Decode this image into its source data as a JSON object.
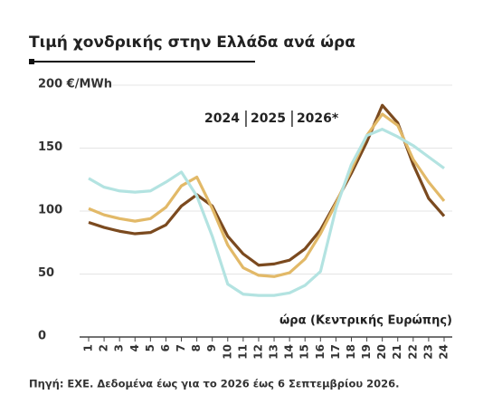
{
  "chart_data": {
    "type": "line",
    "title": "Τιμή χονδρικής στην Ελλάδα ανά ώρα",
    "x_label": "ώρα (Κεντρικής Ευρώπης)",
    "source": "Πηγή: ΕΧΕ. Δεδομένα έως για το 2026 έως 6 Σεπτεμβρίου 2026.",
    "categories": [
      "1",
      "2",
      "3",
      "4",
      "5",
      "6",
      "7",
      "8",
      "9",
      "10",
      "11",
      "12",
      "13",
      "14",
      "15",
      "16",
      "17",
      "18",
      "19",
      "20",
      "21",
      "22",
      "23",
      "24"
    ],
    "series": [
      {
        "name": "2024",
        "color": "#7b4a1f",
        "values": [
          91,
          87,
          84,
          82,
          83,
          89,
          104,
          113,
          104,
          80,
          66,
          57,
          58,
          61,
          70,
          85,
          107,
          130,
          155,
          184,
          170,
          137,
          110,
          96
        ]
      },
      {
        "name": "2025",
        "color": "#e2b968",
        "values": [
          102,
          97,
          94,
          92,
          94,
          103,
          120,
          127,
          102,
          73,
          55,
          49,
          48,
          51,
          62,
          82,
          106,
          133,
          160,
          177,
          168,
          141,
          123,
          108
        ]
      },
      {
        "name": "2026*",
        "color": "#b3e3e1",
        "values": [
          126,
          119,
          116,
          115,
          116,
          123,
          131,
          112,
          80,
          42,
          34,
          33,
          33,
          35,
          41,
          52,
          102,
          137,
          160,
          165,
          159,
          152,
          143,
          134
        ]
      }
    ],
    "ylim": [
      0,
      200
    ],
    "yticks": [
      0,
      50,
      100,
      150,
      {
        "value": 200,
        "label": "200 €/MWh"
      }
    ],
    "grid": true
  }
}
